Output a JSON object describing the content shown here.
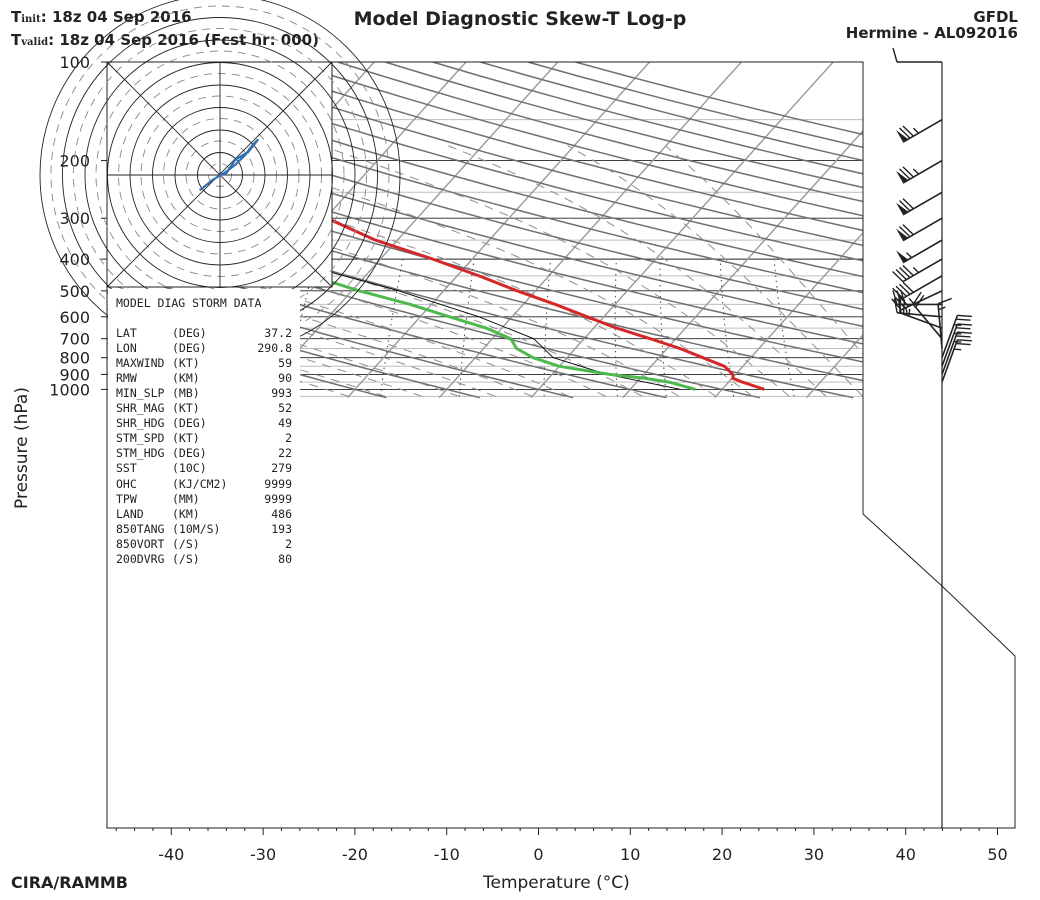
{
  "header": {
    "init_label": "T",
    "init_sub": "init",
    "init_text": ":  18z 04 Sep 2016",
    "valid_label": "T",
    "valid_sub": "valid",
    "valid_text": ": 18z 04 Sep 2016 (Fcst hr: 000)",
    "title": "Model Diagnostic Skew-T Log-p",
    "model": "GFDL",
    "storm": "Hermine - AL092016"
  },
  "footer": {
    "credit": "CIRA/RAMMB"
  },
  "info_box": {
    "title": "MODEL DIAG STORM DATA",
    "rows": [
      {
        "name": "LAT",
        "unit": "(DEG)",
        "value": "37.2"
      },
      {
        "name": "LON",
        "unit": "(DEG)",
        "value": "290.8"
      },
      {
        "name": "MAXWIND",
        "unit": "(KT)",
        "value": "59"
      },
      {
        "name": "RMW",
        "unit": "(KM)",
        "value": "90"
      },
      {
        "name": "MIN_SLP",
        "unit": "(MB)",
        "value": "993"
      },
      {
        "name": "SHR_MAG",
        "unit": "(KT)",
        "value": "52"
      },
      {
        "name": "SHR_HDG",
        "unit": "(DEG)",
        "value": "49"
      },
      {
        "name": "STM_SPD",
        "unit": "(KT)",
        "value": "2"
      },
      {
        "name": "STM_HDG",
        "unit": "(DEG)",
        "value": "22"
      },
      {
        "name": "SST",
        "unit": "(10C)",
        "value": "279"
      },
      {
        "name": "OHC",
        "unit": "(KJ/CM2)",
        "value": "9999"
      },
      {
        "name": "TPW",
        "unit": "(MM)",
        "value": "9999"
      },
      {
        "name": "LAND",
        "unit": "(KM)",
        "value": "486"
      },
      {
        "name": "850TANG",
        "unit": "(10M/S)",
        "value": "193"
      },
      {
        "name": "850VORT",
        "unit": "(/S)",
        "value": "2"
      },
      {
        "name": "200DVRG",
        "unit": "(/S)",
        "value": "80"
      }
    ]
  },
  "chart_data": {
    "type": "line",
    "title": "Model Diagnostic Skew-T Log-p",
    "xlabel": "Temperature (°C)",
    "ylabel": "Pressure (hPa)",
    "x_ticks": [
      -40,
      -30,
      -20,
      -10,
      0,
      10,
      20,
      30,
      40,
      50
    ],
    "y_ticks": [
      100,
      200,
      300,
      400,
      500,
      600,
      700,
      800,
      900,
      1000
    ],
    "x_range": [
      -47,
      52
    ],
    "y_range": [
      1050,
      100
    ],
    "skew": "skewed temperature axis, log-pressure vertical axis",
    "colors": {
      "temperature": "#d62728",
      "dewpoint": "#4db84d",
      "hodograph": "#3070b0",
      "parcel": "#000000"
    },
    "series": [
      {
        "name": "Temperature",
        "points": [
          [
            1000,
            24.6
          ],
          [
            950,
            21.5
          ],
          [
            925,
            20.1
          ],
          [
            900,
            19.7
          ],
          [
            850,
            18.0
          ],
          [
            800,
            14.8
          ],
          [
            750,
            11.4
          ],
          [
            700,
            7.2
          ],
          [
            650,
            2.5
          ],
          [
            600,
            -1.8
          ],
          [
            550,
            -6.5
          ],
          [
            500,
            -12.0
          ],
          [
            450,
            -17.6
          ],
          [
            400,
            -24.3
          ],
          [
            350,
            -32.4
          ],
          [
            300,
            -39.8
          ],
          [
            250,
            -48.2
          ],
          [
            200,
            -56.6
          ],
          [
            150,
            -60.7
          ],
          [
            100,
            -55.5
          ]
        ]
      },
      {
        "name": "Dewpoint",
        "points": [
          [
            1000,
            17.1
          ],
          [
            950,
            13.5
          ],
          [
            925,
            10.5
          ],
          [
            900,
            6.3
          ],
          [
            850,
            0.0
          ],
          [
            800,
            -3.7
          ],
          [
            750,
            -6.4
          ],
          [
            700,
            -8.0
          ],
          [
            650,
            -11.7
          ],
          [
            600,
            -16.8
          ],
          [
            550,
            -22.3
          ],
          [
            500,
            -29.2
          ],
          [
            450,
            -35.8
          ],
          [
            400,
            -40.3
          ],
          [
            350,
            -46.0
          ],
          [
            300,
            -52.6
          ],
          [
            250,
            -61.8
          ],
          [
            200,
            -72.0
          ],
          [
            150,
            -79.8
          ],
          [
            100,
            -83.5
          ]
        ]
      },
      {
        "name": "Parcel",
        "points": [
          [
            1000,
            15.5
          ],
          [
            900,
            6.0
          ],
          [
            800,
            -1.5
          ],
          [
            700,
            -5.5
          ],
          [
            600,
            -13.6
          ],
          [
            500,
            -24.9
          ],
          [
            400,
            -40.6
          ],
          [
            300,
            -61.7
          ],
          [
            220,
            -85.0
          ]
        ]
      }
    ],
    "hodograph": {
      "u_v_kt": [
        [
          -8,
          -6
        ],
        [
          -3,
          -2
        ],
        [
          2,
          1
        ],
        [
          6,
          4
        ],
        [
          10,
          8
        ],
        [
          13,
          12
        ],
        [
          15,
          14
        ],
        [
          11,
          9
        ],
        [
          6,
          6
        ],
        [
          2,
          0
        ]
      ]
    },
    "wind_barbs": [
      {
        "p": 100,
        "dir_deg": 270,
        "speed_kt": 10
      },
      {
        "p": 150,
        "dir_deg": 240,
        "speed_kt": 75
      },
      {
        "p": 200,
        "dir_deg": 240,
        "speed_kt": 75
      },
      {
        "p": 250,
        "dir_deg": 240,
        "speed_kt": 70
      },
      {
        "p": 300,
        "dir_deg": 240,
        "speed_kt": 70
      },
      {
        "p": 350,
        "dir_deg": 240,
        "speed_kt": 55
      },
      {
        "p": 400,
        "dir_deg": 240,
        "speed_kt": 45
      },
      {
        "p": 450,
        "dir_deg": 240,
        "speed_kt": 40
      },
      {
        "p": 500,
        "dir_deg": 245,
        "speed_kt": 35
      },
      {
        "p": 550,
        "dir_deg": 270,
        "speed_kt": 30
      },
      {
        "p": 600,
        "dir_deg": 275,
        "speed_kt": 25
      },
      {
        "p": 650,
        "dir_deg": 290,
        "speed_kt": 25
      },
      {
        "p": 700,
        "dir_deg": 320,
        "speed_kt": 20
      },
      {
        "p": 750,
        "dir_deg": 355,
        "speed_kt": 15
      },
      {
        "p": 800,
        "dir_deg": 20,
        "speed_kt": 25
      },
      {
        "p": 850,
        "dir_deg": 20,
        "speed_kt": 25
      },
      {
        "p": 900,
        "dir_deg": 20,
        "speed_kt": 25
      },
      {
        "p": 950,
        "dir_deg": 20,
        "speed_kt": 25
      }
    ]
  }
}
